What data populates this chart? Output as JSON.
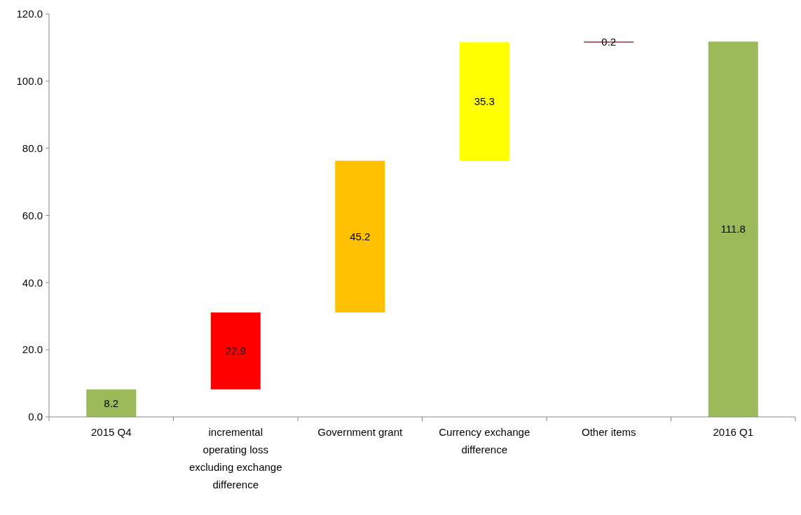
{
  "chart_data": {
    "type": "bar",
    "categories": [
      "2015 Q4",
      "incremental operating loss excluding exchange difference",
      "Government grant",
      "Currency exchange difference",
      "Other items",
      "2016 Q1"
    ],
    "values": [
      8.2,
      22.9,
      45.2,
      35.3,
      0.2,
      111.8
    ],
    "base": [
      0,
      8.2,
      31.1,
      76.3,
      111.6,
      0
    ],
    "colors": [
      "#9bbb59",
      "#ff0000",
      "#ffc000",
      "#ffff00",
      "#953735",
      "#9bbb59"
    ],
    "ylim": [
      0,
      120
    ],
    "yticks": [
      {
        "value": 0,
        "label": "0.0"
      },
      {
        "value": 20,
        "label": "20.0"
      },
      {
        "value": 40,
        "label": "40.0"
      },
      {
        "value": 60,
        "label": "60.0"
      },
      {
        "value": 80,
        "label": "80.0"
      },
      {
        "value": 100,
        "label": "100.0"
      },
      {
        "value": 120,
        "label": "120.0"
      }
    ],
    "data_labels": true
  }
}
